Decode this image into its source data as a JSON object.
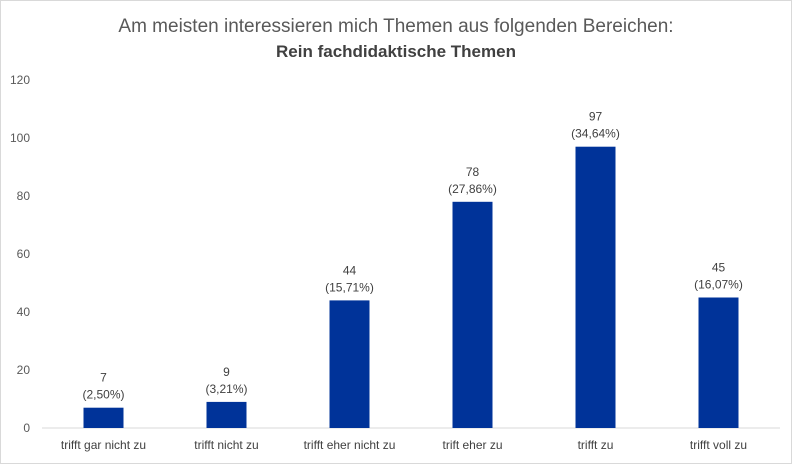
{
  "chart_data": {
    "type": "bar",
    "title": "Am meisten interessieren mich Themen aus folgenden Bereichen:",
    "subtitle": "Rein fachdidaktische Themen",
    "categories": [
      "trifft gar nicht zu",
      "trifft nicht zu",
      "trifft eher nicht zu",
      "trift eher zu",
      "trifft zu",
      "trifft voll zu"
    ],
    "values": [
      7,
      9,
      44,
      78,
      97,
      45
    ],
    "percent_labels": [
      "(2,50%)",
      "(3,21%)",
      "(15,71%)",
      "(27,86%)",
      "(34,64%)",
      "(16,07%)"
    ],
    "ylim": [
      0,
      120
    ],
    "yticks": [
      "0",
      "20",
      "40",
      "60",
      "80",
      "100",
      "120"
    ],
    "xlabel": "",
    "ylabel": "",
    "grid": false,
    "legend": "none",
    "bar_color": "#003399"
  }
}
